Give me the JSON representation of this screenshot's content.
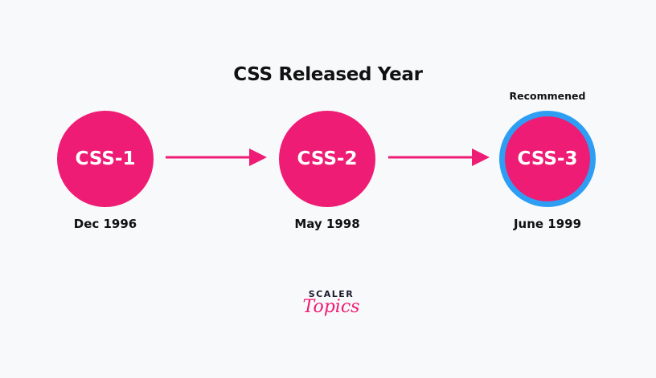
{
  "title": "CSS Released Year",
  "colors": {
    "node_fill": "#ee1c74",
    "arrow": "#ee1c74",
    "highlight_ring": "#2e9ef4"
  },
  "nodes": [
    {
      "label": "CSS-1",
      "date": "Dec 1996"
    },
    {
      "label": "CSS-2",
      "date": "May 1998"
    },
    {
      "label": "CSS-3",
      "date": "June 1999",
      "note": "Recommened"
    }
  ],
  "logo": {
    "brand_top": "SCALER",
    "brand_bottom": "Topics"
  }
}
